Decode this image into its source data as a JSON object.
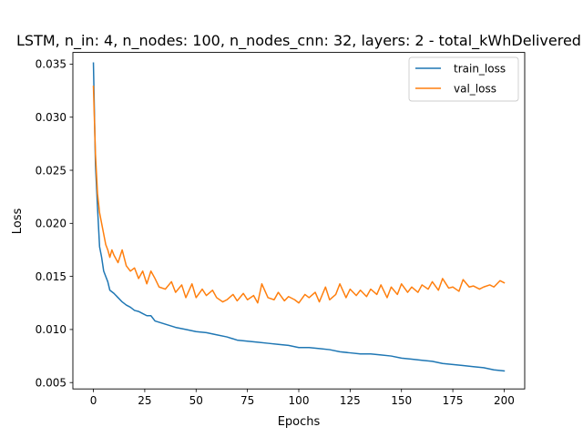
{
  "chart_data": {
    "type": "line",
    "title": "LSTM, n_in: 4, n_nodes: 100, n_nodes_cnn: 32, layers: 2 - total_kWhDelivered",
    "xlabel": "Epochs",
    "ylabel": "Loss",
    "xlim": [
      -10,
      210
    ],
    "ylim": [
      0.0044,
      0.0361
    ],
    "xticks": [
      0,
      25,
      50,
      75,
      100,
      125,
      150,
      175,
      200
    ],
    "yticks": [
      0.005,
      0.01,
      0.015,
      0.02,
      0.025,
      0.03,
      0.035
    ],
    "ytick_labels": [
      "0.005",
      "0.010",
      "0.015",
      "0.020",
      "0.025",
      "0.030",
      "0.035"
    ],
    "grid": false,
    "legend_position": "upper right",
    "series": [
      {
        "name": "train_loss",
        "color": "#1f77b4",
        "x": [
          0,
          1,
          2,
          3,
          4,
          5,
          6,
          7,
          8,
          10,
          12,
          14,
          16,
          18,
          20,
          22,
          24,
          26,
          28,
          30,
          35,
          40,
          45,
          50,
          55,
          60,
          65,
          70,
          75,
          80,
          85,
          90,
          95,
          100,
          105,
          110,
          115,
          120,
          125,
          130,
          135,
          140,
          145,
          150,
          155,
          160,
          165,
          170,
          175,
          180,
          185,
          190,
          195,
          200
        ],
        "values": [
          0.0351,
          0.0255,
          0.0215,
          0.0178,
          0.0168,
          0.0155,
          0.015,
          0.0145,
          0.0137,
          0.0134,
          0.013,
          0.0126,
          0.0123,
          0.0121,
          0.0118,
          0.0117,
          0.0115,
          0.0113,
          0.0113,
          0.0108,
          0.0105,
          0.0102,
          0.01,
          0.0098,
          0.0097,
          0.0095,
          0.0093,
          0.009,
          0.0089,
          0.0088,
          0.0087,
          0.0086,
          0.0085,
          0.0083,
          0.0083,
          0.0082,
          0.0081,
          0.0079,
          0.0078,
          0.0077,
          0.0077,
          0.0076,
          0.0075,
          0.0073,
          0.0072,
          0.0071,
          0.007,
          0.0068,
          0.0067,
          0.0066,
          0.0065,
          0.0064,
          0.0062,
          0.0061
        ]
      },
      {
        "name": "val_loss",
        "color": "#ff7f0e",
        "x": [
          0,
          1,
          2,
          3,
          4,
          5,
          6,
          7,
          8,
          9,
          10,
          12,
          14,
          16,
          18,
          20,
          22,
          24,
          26,
          28,
          30,
          32,
          35,
          38,
          40,
          43,
          45,
          48,
          50,
          53,
          55,
          58,
          60,
          63,
          65,
          68,
          70,
          73,
          75,
          78,
          80,
          82,
          85,
          88,
          90,
          93,
          95,
          98,
          100,
          103,
          105,
          108,
          110,
          113,
          115,
          118,
          120,
          123,
          125,
          128,
          130,
          133,
          135,
          138,
          140,
          143,
          145,
          148,
          150,
          153,
          155,
          158,
          160,
          163,
          165,
          168,
          170,
          173,
          175,
          178,
          180,
          183,
          185,
          188,
          190,
          193,
          195,
          198,
          200
        ],
        "values": [
          0.0329,
          0.0265,
          0.0228,
          0.021,
          0.02,
          0.019,
          0.018,
          0.0175,
          0.0168,
          0.0175,
          0.017,
          0.0163,
          0.0175,
          0.016,
          0.0155,
          0.0158,
          0.0148,
          0.0155,
          0.0143,
          0.0155,
          0.0148,
          0.014,
          0.0138,
          0.0145,
          0.0135,
          0.0142,
          0.013,
          0.0143,
          0.013,
          0.0138,
          0.0132,
          0.0137,
          0.013,
          0.0126,
          0.0128,
          0.0133,
          0.0127,
          0.0134,
          0.0128,
          0.0132,
          0.0125,
          0.0143,
          0.013,
          0.0128,
          0.0135,
          0.0127,
          0.0131,
          0.0128,
          0.0125,
          0.0133,
          0.013,
          0.0135,
          0.0126,
          0.014,
          0.0128,
          0.0133,
          0.0143,
          0.013,
          0.0138,
          0.0132,
          0.0137,
          0.0131,
          0.0138,
          0.0133,
          0.0142,
          0.013,
          0.014,
          0.0133,
          0.0143,
          0.0135,
          0.014,
          0.0135,
          0.0142,
          0.0138,
          0.0145,
          0.0137,
          0.0148,
          0.0139,
          0.014,
          0.0136,
          0.0147,
          0.014,
          0.0141,
          0.0138,
          0.014,
          0.0142,
          0.014,
          0.0146,
          0.0144
        ]
      }
    ]
  }
}
